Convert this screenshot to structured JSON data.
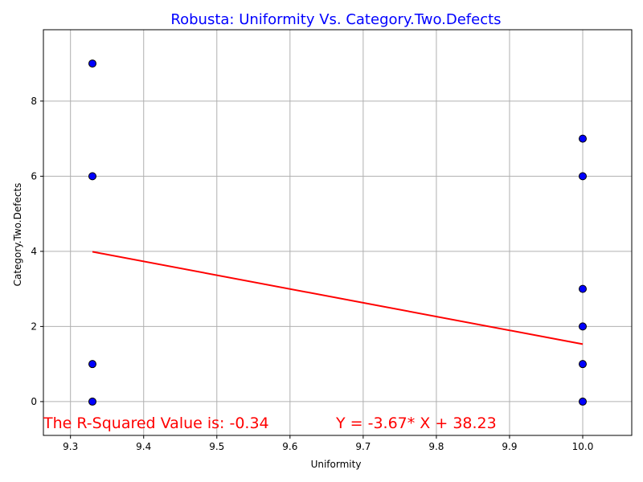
{
  "chart_data": {
    "type": "scatter",
    "title": "Robusta: Uniformity Vs. Category.Two.Defects",
    "xlabel": "Uniformity",
    "ylabel": "Category.Two.Defects",
    "xlim": [
      9.263,
      10.067
    ],
    "ylim": [
      -0.9,
      9.9
    ],
    "grid": true,
    "xticks": [
      9.3,
      9.4,
      9.5,
      9.6,
      9.7,
      9.8,
      9.9,
      10.0
    ],
    "xtick_labels": [
      "9.3",
      "9.4",
      "9.5",
      "9.6",
      "9.7",
      "9.8",
      "9.9",
      "10.0"
    ],
    "yticks": [
      0,
      2,
      4,
      6,
      8
    ],
    "ytick_labels": [
      "0",
      "2",
      "4",
      "6",
      "8"
    ],
    "points": [
      {
        "x": 9.33,
        "y": 9
      },
      {
        "x": 9.33,
        "y": 6
      },
      {
        "x": 9.33,
        "y": 1
      },
      {
        "x": 9.33,
        "y": 0
      },
      {
        "x": 10.0,
        "y": 7
      },
      {
        "x": 10.0,
        "y": 6
      },
      {
        "x": 10.0,
        "y": 3
      },
      {
        "x": 10.0,
        "y": 2
      },
      {
        "x": 10.0,
        "y": 1
      },
      {
        "x": 10.0,
        "y": 0
      }
    ],
    "regression": {
      "slope": -3.67,
      "intercept": 38.23,
      "x_range": [
        9.33,
        10.0
      ]
    },
    "annotations": {
      "r_squared": "The R-Squared Value is: -0.34",
      "equation": "Y = -3.67* X + 38.23"
    },
    "colors": {
      "title": "#0000ff",
      "points_fill": "#0000ff",
      "points_edge": "#000000",
      "line": "#ff0000",
      "annotation": "#ff0000",
      "grid": "#b0b0b0"
    }
  }
}
